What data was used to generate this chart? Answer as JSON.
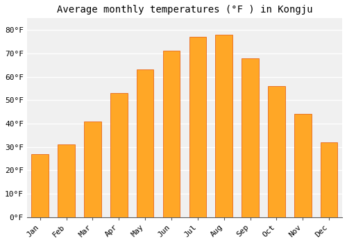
{
  "title": "Average monthly temperatures (°F ) in Kongju",
  "months": [
    "Jan",
    "Feb",
    "Mar",
    "Apr",
    "May",
    "Jun",
    "Jul",
    "Aug",
    "Sep",
    "Oct",
    "Nov",
    "Dec"
  ],
  "values": [
    27,
    31,
    41,
    53,
    63,
    71,
    77,
    78,
    68,
    56,
    44,
    32
  ],
  "bar_color": "#FFA726",
  "bar_edge_color": "#E65100",
  "ylim": [
    0,
    85
  ],
  "yticks": [
    0,
    10,
    20,
    30,
    40,
    50,
    60,
    70,
    80
  ],
  "ytick_labels": [
    "0°F",
    "10°F",
    "20°F",
    "30°F",
    "40°F",
    "50°F",
    "60°F",
    "70°F",
    "80°F"
  ],
  "figure_facecolor": "#ffffff",
  "axes_facecolor": "#f0f0f0",
  "grid_color": "#ffffff",
  "title_fontsize": 10,
  "tick_fontsize": 8,
  "font_family": "monospace"
}
